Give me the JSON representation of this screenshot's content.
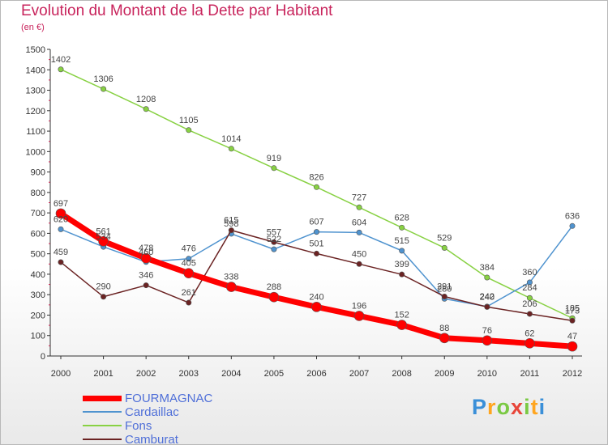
{
  "title": "Evolution du Montant de la Dette par Habitant",
  "subtitle": "(en €)",
  "brand": {
    "letters": [
      "P",
      "r",
      "o",
      "x",
      "i",
      "t",
      "i"
    ]
  },
  "chart_data": {
    "type": "line",
    "x": [
      "2000",
      "2001",
      "2002",
      "2003",
      "2004",
      "2005",
      "2006",
      "2007",
      "2008",
      "2009",
      "2010",
      "2011",
      "2012"
    ],
    "ylim": [
      0,
      1500
    ],
    "yticks": [
      "0",
      "100",
      "200",
      "300",
      "400",
      "500",
      "600",
      "700",
      "800",
      "900",
      "1000",
      "1100",
      "1200",
      "1300",
      "1400",
      "1500"
    ],
    "grid": false,
    "legend_position": "bottom-left",
    "series": [
      {
        "name": "FOURMAGNAC",
        "color": "#ff0000",
        "values": [
          697,
          561,
          478,
          405,
          338,
          288,
          240,
          196,
          152,
          88,
          76,
          62,
          47
        ]
      },
      {
        "name": "Cardaillac",
        "color": "#4f93cf",
        "values": [
          620,
          534,
          460,
          476,
          598,
          522,
          607,
          604,
          515,
          280,
          242,
          360,
          636
        ]
      },
      {
        "name": "Fons",
        "color": "#88d143",
        "values": [
          1402,
          1306,
          1208,
          1105,
          1014,
          919,
          826,
          727,
          628,
          529,
          384,
          284,
          185
        ]
      },
      {
        "name": "Camburat",
        "color": "#6b2323",
        "values": [
          459,
          290,
          346,
          261,
          615,
          557,
          501,
          450,
          399,
          291,
          240,
          206,
          173
        ]
      }
    ]
  }
}
